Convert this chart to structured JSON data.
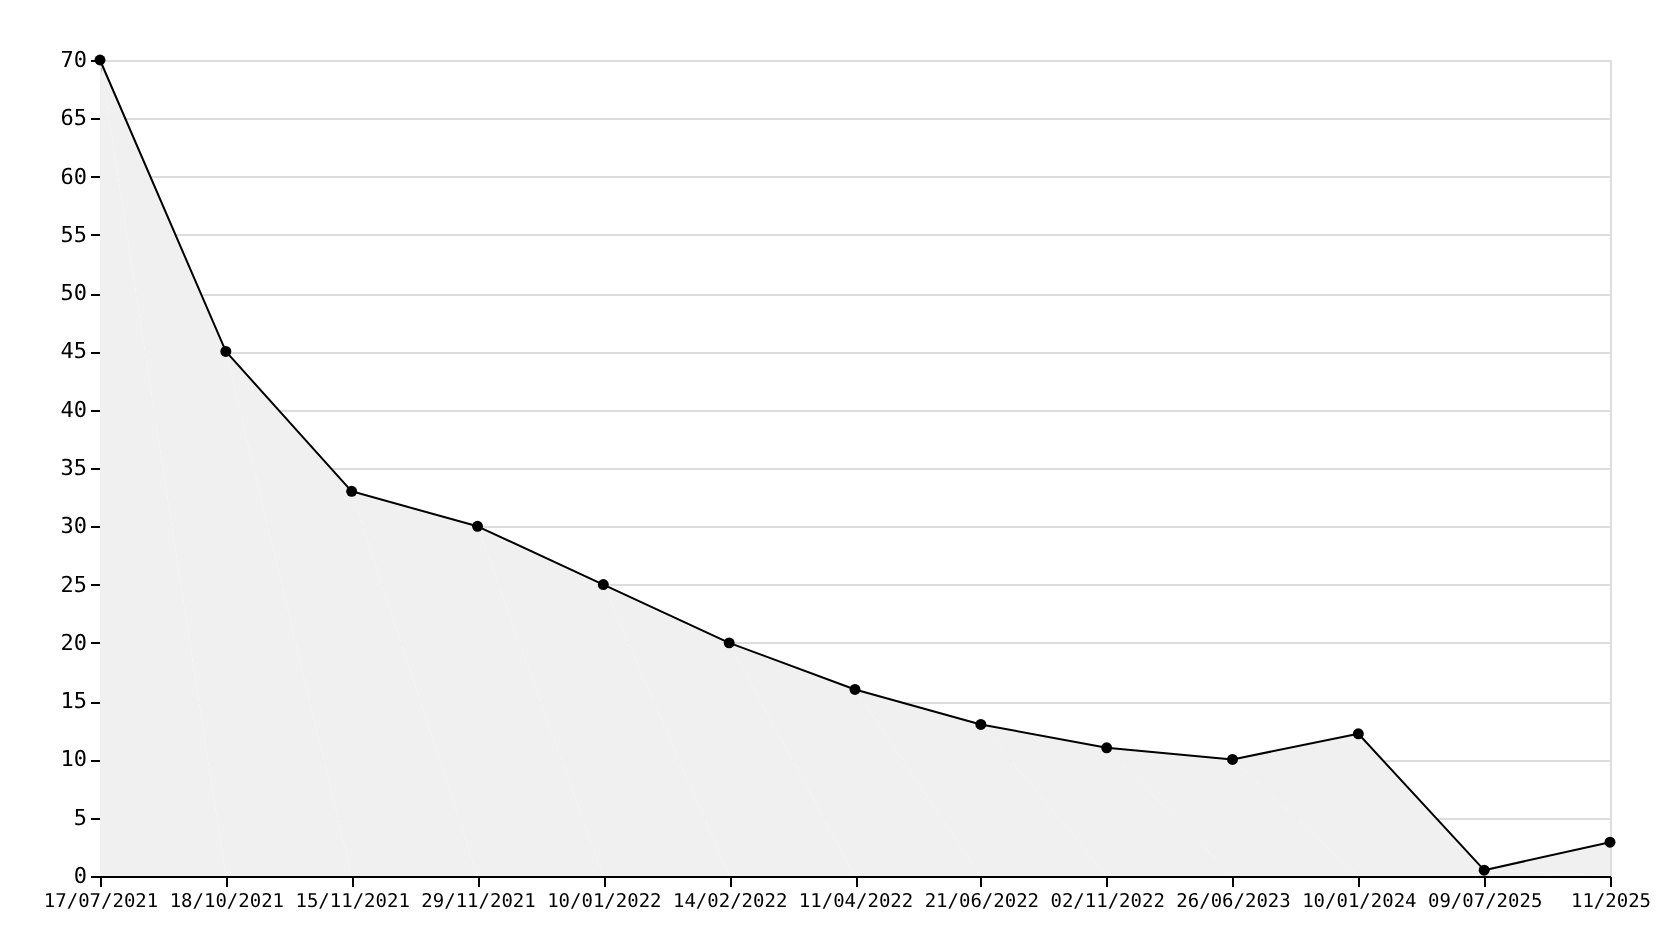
{
  "chart_data": {
    "type": "area",
    "categories": [
      "17/07/2021",
      "18/10/2021",
      "15/11/2021",
      "29/11/2021",
      "10/01/2022",
      "14/02/2022",
      "11/04/2022",
      "21/06/2022",
      "02/11/2022",
      "26/06/2023",
      "10/01/2024",
      "09/07/2025",
      "11/2025"
    ],
    "series": [
      {
        "color": "#000000",
        "values": [
          70,
          45,
          33,
          30,
          25,
          20,
          16,
          13,
          11,
          10,
          12.2,
          0.5,
          2.9
        ]
      }
    ],
    "ylim": [
      0,
      70
    ],
    "yticks": [
      0,
      5,
      10,
      15,
      20,
      25,
      30,
      35,
      40,
      45,
      50,
      55,
      60,
      65,
      70
    ],
    "grid": "y",
    "marker": "circle",
    "line_style": "solid"
  }
}
